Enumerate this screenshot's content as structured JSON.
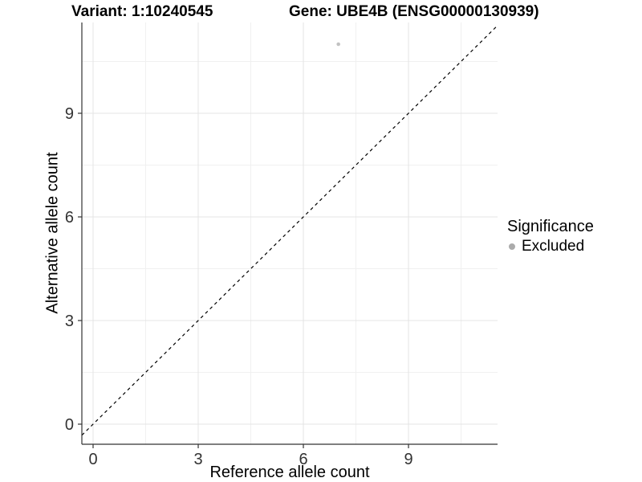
{
  "chart_data": {
    "type": "scatter",
    "title_left": "Variant: 1:10240545",
    "title_right": "Gene: UBE4B (ENSG00000130939)",
    "xlabel": "Reference allele count",
    "ylabel": "Alternative allele count",
    "xlim": [
      -0.32,
      11.54
    ],
    "ylim": [
      -0.58,
      11.63
    ],
    "x_major_ticks": [
      0,
      3,
      6,
      9
    ],
    "y_major_ticks": [
      0,
      3,
      6,
      9
    ],
    "x_minor_gridlines": [
      1.5,
      4.5,
      7.5,
      10.5
    ],
    "y_minor_gridlines": [
      1.5,
      4.5,
      7.5,
      10.5
    ],
    "grid": true,
    "legend_position": "right",
    "series": [
      {
        "name": "Excluded",
        "color": "#c2c2c2",
        "points": [
          {
            "x": 7,
            "y": 11
          }
        ]
      }
    ],
    "reference_line": {
      "type": "identity",
      "slope": 1,
      "intercept": 0,
      "style": "dashed",
      "color": "#000000"
    },
    "legend": {
      "title": "Significance",
      "items": [
        {
          "label": "Excluded",
          "color": "#ababab"
        }
      ]
    },
    "style": {
      "grid_major_color": "#e4e4e4",
      "grid_minor_color": "#f0f0f0",
      "axis_line_color": "#333333",
      "tick_label_color": "#333333"
    }
  }
}
